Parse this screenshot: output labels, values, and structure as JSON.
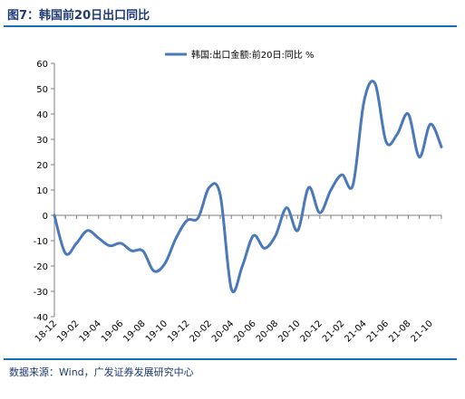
{
  "header": {
    "title": "图7：韩国前20日出口同比"
  },
  "footer": {
    "source": "数据来源：Wind，广发证券发展研究中心"
  },
  "chart_data": {
    "type": "line",
    "title": "",
    "xlabel": "",
    "ylabel": "",
    "ylim": [
      -40,
      60
    ],
    "yticks": [
      -40,
      -30,
      -20,
      -10,
      0,
      10,
      20,
      30,
      40,
      50,
      60
    ],
    "xtick_labels": [
      "18-12",
      "19-02",
      "19-04",
      "19-06",
      "19-08",
      "19-10",
      "19-12",
      "20-02",
      "20-04",
      "20-06",
      "20-08",
      "20-10",
      "20-12",
      "21-02",
      "21-04",
      "21-06",
      "21-08",
      "21-10"
    ],
    "grid": false,
    "legend_position": "top",
    "line_color": "#4a78b8",
    "x": [
      "18-12",
      "19-01",
      "19-02",
      "19-03",
      "19-04",
      "19-05",
      "19-06",
      "19-07",
      "19-08",
      "19-09",
      "19-10",
      "19-11",
      "19-12",
      "20-01",
      "20-02",
      "20-03",
      "20-04",
      "20-05",
      "20-06",
      "20-07",
      "20-08",
      "20-09",
      "20-10",
      "20-11",
      "20-12",
      "21-01",
      "21-02",
      "21-03",
      "21-04",
      "21-05",
      "21-06",
      "21-07",
      "21-08",
      "21-09",
      "21-10",
      "21-11"
    ],
    "series": [
      {
        "name": "韩国:出口金额:前20日:同比 %",
        "values": [
          0,
          -15,
          -11,
          -6,
          -9,
          -12,
          -11,
          -14,
          -14,
          -22,
          -19,
          -9,
          -2,
          -1,
          11,
          8,
          -29,
          -20,
          -8,
          -13,
          -8,
          3,
          -6,
          11,
          1,
          10,
          16,
          12,
          45,
          52,
          29,
          32,
          40,
          23,
          36,
          27
        ]
      }
    ]
  }
}
